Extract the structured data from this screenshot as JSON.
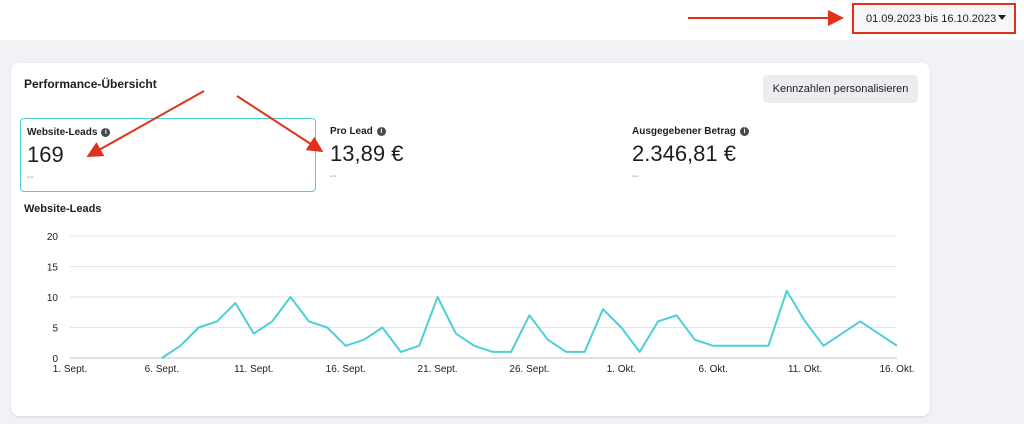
{
  "date_range": {
    "label": "01.09.2023 bis 16.10.2023"
  },
  "overview": {
    "title": "Performance-Übersicht",
    "personalize_button": "Kennzahlen personalisieren",
    "metrics": [
      {
        "label": "Website-Leads",
        "value": "169",
        "delta": "--"
      },
      {
        "label": "Pro Lead",
        "value": "13,89 €",
        "delta": "--"
      },
      {
        "label": "Ausgegebener Betrag",
        "value": "2.346,81 €",
        "delta": "--"
      }
    ]
  },
  "colors": {
    "line": "#4dd0d4",
    "annotation": "#e0321b",
    "selected_border": "#4dd0d4"
  },
  "chart_data": {
    "type": "line",
    "title": "Website-Leads",
    "ylim": [
      0,
      20
    ],
    "yticks": [
      0,
      5,
      10,
      15,
      20
    ],
    "xtick_labels": [
      "1. Sept.",
      "6. Sept.",
      "11. Sept.",
      "16. Sept.",
      "21. Sept.",
      "26. Sept.",
      "1. Okt.",
      "6. Okt.",
      "11. Okt.",
      "16. Okt."
    ],
    "x": [
      "6. Sept.",
      "7. Sept.",
      "8. Sept.",
      "9. Sept.",
      "10. Sept.",
      "11. Sept.",
      "12. Sept.",
      "13. Sept.",
      "14. Sept.",
      "15. Sept.",
      "16. Sept.",
      "17. Sept.",
      "18. Sept.",
      "19. Sept.",
      "20. Sept.",
      "21. Sept.",
      "22. Sept.",
      "23. Sept.",
      "24. Sept.",
      "25. Sept.",
      "26. Sept.",
      "27. Sept.",
      "28. Sept.",
      "29. Sept.",
      "30. Sept.",
      "1. Okt.",
      "2. Okt.",
      "3. Okt.",
      "4. Okt.",
      "5. Okt.",
      "6. Okt.",
      "7. Okt.",
      "8. Okt.",
      "9. Okt.",
      "10. Okt.",
      "11. Okt.",
      "12. Okt.",
      "13. Okt.",
      "14. Okt.",
      "15. Okt.",
      "16. Okt."
    ],
    "series": [
      {
        "values": [
          0,
          2,
          5,
          6,
          9,
          4,
          6,
          10,
          6,
          5,
          2,
          3,
          5,
          1,
          2,
          10,
          4,
          2,
          1,
          1,
          7,
          3,
          1,
          1,
          8,
          5,
          1,
          6,
          7,
          3,
          2,
          2,
          2,
          2,
          11,
          6,
          2,
          4,
          6,
          4,
          2
        ]
      }
    ],
    "grid": true,
    "legend": "none"
  }
}
